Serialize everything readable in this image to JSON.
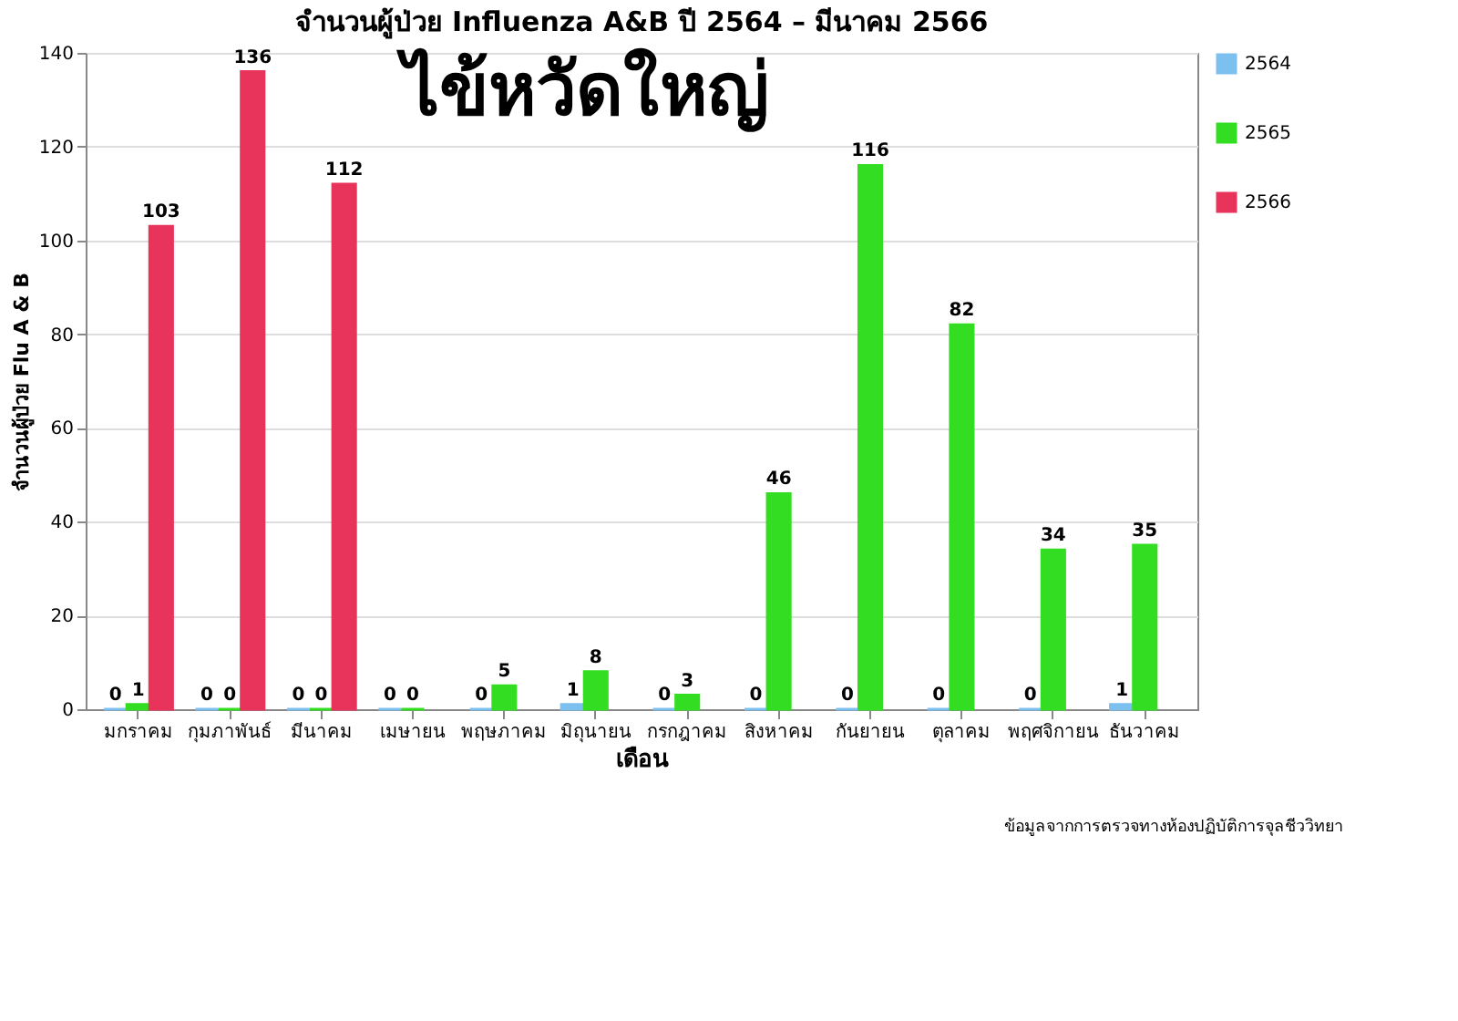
{
  "chart_data": {
    "type": "bar",
    "title": "จำนวนผู้ป่วย Influenza A&B ปี 2564 – มีนาคม 2566",
    "xlabel": "เดือน",
    "ylabel": "จำนวนผู้ป่วย Flu A & B",
    "categories": [
      "มกราคม",
      "กุมภาพันธ์",
      "มีนาคม",
      "เมษายน",
      "พฤษภาคม",
      "มิถุนายน",
      "กรกฎาคม",
      "สิงหาคม",
      "กันยายน",
      "ตุลาคม",
      "พฤศจิกายน",
      "ธันวาคม"
    ],
    "series": [
      {
        "name": "2564",
        "color": "#7cc0f0",
        "values": [
          0,
          0,
          0,
          0,
          0,
          1,
          0,
          0,
          0,
          0,
          0,
          1
        ]
      },
      {
        "name": "2565",
        "color": "#33dd22",
        "values": [
          1,
          0,
          0,
          0,
          5,
          8,
          3,
          46,
          116,
          82,
          34,
          35
        ]
      },
      {
        "name": "2566",
        "color": "#e8335a",
        "values": [
          103,
          136,
          112,
          null,
          null,
          null,
          null,
          null,
          null,
          null,
          null,
          null
        ]
      }
    ],
    "ylim": [
      0,
      140
    ],
    "yticks": [
      0,
      20,
      40,
      60,
      80,
      100,
      120,
      140
    ],
    "grid": "y",
    "legend": "top right",
    "data_labels": true,
    "annotations": [
      "ไข้หวัดใหญ่",
      "ข้อมูลจากการตรวจทางห้องปฏิบัติการจุลชีววิทยา"
    ]
  }
}
